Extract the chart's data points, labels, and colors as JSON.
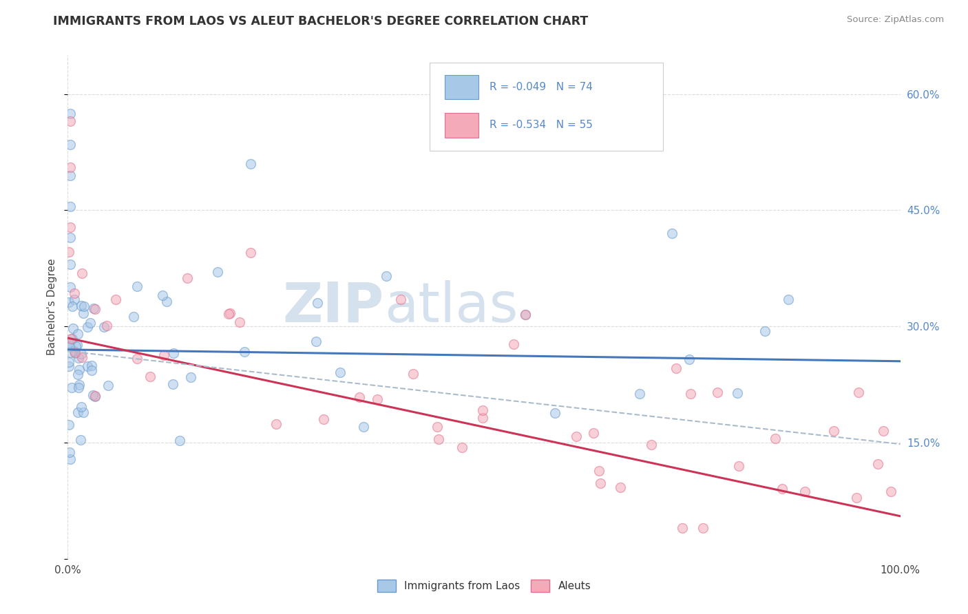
{
  "title": "IMMIGRANTS FROM LAOS VS ALEUT BACHELOR'S DEGREE CORRELATION CHART",
  "source_text": "Source: ZipAtlas.com",
  "ylabel": "Bachelor's Degree",
  "legend_blue_r": "R = -0.049",
  "legend_blue_n": "N = 74",
  "legend_pink_r": "R = -0.534",
  "legend_pink_n": "N = 55",
  "xmin": 0.0,
  "xmax": 1.0,
  "ymin": 0.0,
  "ymax": 0.65,
  "yticks": [
    0.0,
    0.15,
    0.3,
    0.45,
    0.6
  ],
  "ytick_right_labels": [
    "",
    "15.0%",
    "30.0%",
    "45.0%",
    "60.0%"
  ],
  "blue_color": "#a8c8e8",
  "pink_color": "#f4aab8",
  "blue_edge": "#6699cc",
  "pink_edge": "#e07090",
  "trend_blue_color": "#4477bb",
  "trend_pink_color": "#cc3355",
  "trend_dashed_color": "#aabbcc",
  "background_color": "#ffffff",
  "grid_color": "#cccccc",
  "title_color": "#333333",
  "source_color": "#888888",
  "right_axis_color": "#5588cc",
  "marker_size": 100,
  "alpha": 0.55,
  "blue_trend_x0": 0.0,
  "blue_trend_y0": 0.27,
  "blue_trend_x1": 1.0,
  "blue_trend_y1": 0.255,
  "pink_trend_x0": 0.0,
  "pink_trend_y0": 0.285,
  "pink_trend_x1": 1.0,
  "pink_trend_y1": 0.055,
  "dash_trend_x0": 0.0,
  "dash_trend_y0": 0.268,
  "dash_trend_x1": 1.0,
  "dash_trend_y1": 0.148
}
